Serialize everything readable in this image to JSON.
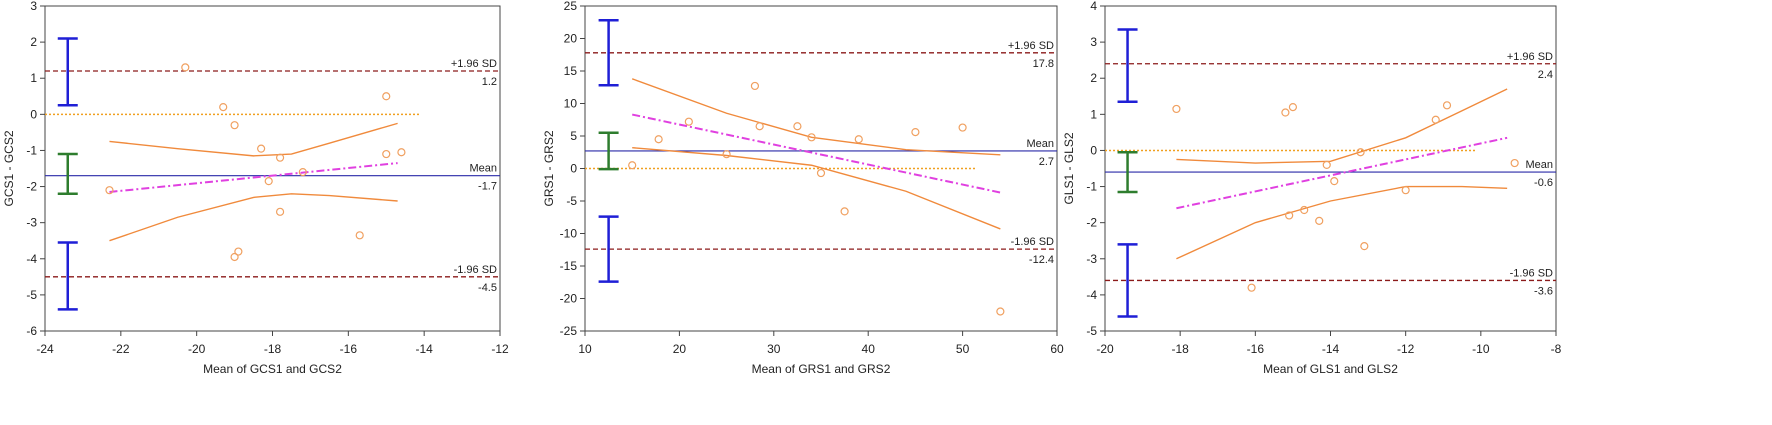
{
  "chart_data": [
    {
      "type": "scatter",
      "subtype": "bland-altman",
      "xlabel": "Mean of GCS1 and GCS2",
      "ylabel": "GCS1 - GCS2",
      "xlim": [
        -24,
        -12
      ],
      "ylim": [
        -6,
        3
      ],
      "xticks": [
        -24,
        -22,
        -20,
        -18,
        -16,
        -14,
        -12
      ],
      "yticks": [
        -6,
        -5,
        -4,
        -3,
        -2,
        -1,
        0,
        1,
        2,
        3
      ],
      "mean": {
        "value": -1.7,
        "label": "Mean",
        "value_label": "-1.7"
      },
      "upper_loa": {
        "value": 1.2,
        "label": "+1.96 SD",
        "value_label": "1.2"
      },
      "lower_loa": {
        "value": -4.5,
        "label": "-1.96 SD",
        "value_label": "-4.5"
      },
      "ci_bars": [
        {
          "x": -23.4,
          "y": [
            0.25,
            2.1
          ],
          "color": "#1f1fd6"
        },
        {
          "x": -23.4,
          "y": [
            -2.2,
            -1.1
          ],
          "color": "#2e7d2e"
        },
        {
          "x": -23.4,
          "y": [
            -5.4,
            -3.55
          ],
          "color": "#1f1fd6"
        }
      ],
      "points": [
        {
          "x": -20.3,
          "y": 1.3
        },
        {
          "x": -19.3,
          "y": 0.2
        },
        {
          "x": -19.0,
          "y": -0.3
        },
        {
          "x": -18.3,
          "y": -0.95
        },
        {
          "x": -17.8,
          "y": -1.2
        },
        {
          "x": -18.1,
          "y": -1.85
        },
        {
          "x": -17.2,
          "y": -1.6
        },
        {
          "x": -17.8,
          "y": -2.7
        },
        {
          "x": -18.9,
          "y": -3.8
        },
        {
          "x": -19.0,
          "y": -3.95
        },
        {
          "x": -15.7,
          "y": -3.35
        },
        {
          "x": -15.0,
          "y": 0.5
        },
        {
          "x": -15.0,
          "y": -1.1
        },
        {
          "x": -14.6,
          "y": -1.05
        },
        {
          "x": -22.3,
          "y": -2.1
        }
      ],
      "regression_line": {
        "x": [
          -22.3,
          -14.7
        ],
        "y": [
          -2.15,
          -1.35
        ]
      },
      "ci_upper": {
        "x": [
          -22.3,
          -20.5,
          -18.5,
          -17.5,
          -16.5,
          -14.7
        ],
        "y": [
          -0.75,
          -0.95,
          -1.15,
          -1.1,
          -0.8,
          -0.25
        ]
      },
      "ci_lower": {
        "x": [
          -22.3,
          -20.5,
          -18.5,
          -17.5,
          -16.5,
          -14.7
        ],
        "y": [
          -3.5,
          -2.85,
          -2.3,
          -2.2,
          -2.25,
          -2.4
        ]
      },
      "zero_line": 0,
      "colors": {
        "points": "#f0a060",
        "ci": "#f08a3c",
        "regression": "#e040e0",
        "mean": "#2a2aa8",
        "loa": "#8b1a1a",
        "zero": "#f0a020"
      }
    },
    {
      "type": "scatter",
      "subtype": "bland-altman",
      "xlabel": "Mean of GRS1 and GRS2",
      "ylabel": "GRS1 - GRS2",
      "xlim": [
        10,
        60
      ],
      "ylim": [
        -25,
        25
      ],
      "xticks": [
        10,
        20,
        30,
        40,
        50,
        60
      ],
      "yticks": [
        -25,
        -20,
        -15,
        -10,
        -5,
        0,
        5,
        10,
        15,
        20,
        25
      ],
      "mean": {
        "value": 2.7,
        "label": "Mean",
        "value_label": "2.7"
      },
      "upper_loa": {
        "value": 17.8,
        "label": "+1.96 SD",
        "value_label": "17.8"
      },
      "lower_loa": {
        "value": -12.4,
        "label": "-1.96 SD",
        "value_label": "-12.4"
      },
      "ci_bars": [
        {
          "x": 12.5,
          "y": [
            12.8,
            22.8
          ],
          "color": "#1f1fd6"
        },
        {
          "x": 12.5,
          "y": [
            -0.1,
            5.5
          ],
          "color": "#2e7d2e"
        },
        {
          "x": 12.5,
          "y": [
            -17.4,
            -7.4
          ],
          "color": "#1f1fd6"
        }
      ],
      "points": [
        {
          "x": 15,
          "y": 0.5
        },
        {
          "x": 17.8,
          "y": 4.5
        },
        {
          "x": 21,
          "y": 7.2
        },
        {
          "x": 25,
          "y": 2.2
        },
        {
          "x": 28,
          "y": 12.7
        },
        {
          "x": 28.5,
          "y": 6.5
        },
        {
          "x": 32.5,
          "y": 6.5
        },
        {
          "x": 34,
          "y": 4.8
        },
        {
          "x": 35,
          "y": -0.7
        },
        {
          "x": 37.5,
          "y": -6.6
        },
        {
          "x": 39,
          "y": 4.5
        },
        {
          "x": 45,
          "y": 5.6
        },
        {
          "x": 50,
          "y": 6.3
        },
        {
          "x": 54,
          "y": -22
        }
      ],
      "regression_line": {
        "x": [
          15,
          54
        ],
        "y": [
          8.3,
          -3.7
        ]
      },
      "ci_upper": {
        "x": [
          15,
          25,
          34,
          44,
          54
        ],
        "y": [
          13.8,
          8.5,
          4.8,
          2.9,
          2.1
        ]
      },
      "ci_lower": {
        "x": [
          15,
          25,
          34,
          44,
          54
        ],
        "y": [
          3.2,
          2.0,
          0.5,
          -3.5,
          -9.3
        ]
      },
      "zero_line": 0,
      "colors": {
        "points": "#f0a060",
        "ci": "#f08a3c",
        "regression": "#e040e0",
        "mean": "#2a2aa8",
        "loa": "#8b1a1a",
        "zero": "#f0a020"
      }
    },
    {
      "type": "scatter",
      "subtype": "bland-altman",
      "xlabel": "Mean of GLS1 and GLS2",
      "ylabel": "GLS1 - GLS2",
      "xlim": [
        -20,
        -8
      ],
      "ylim": [
        -5,
        4
      ],
      "xticks": [
        -20,
        -18,
        -16,
        -14,
        -12,
        -10,
        -8
      ],
      "yticks": [
        -5,
        -4,
        -3,
        -2,
        -1,
        0,
        1,
        2,
        3,
        4
      ],
      "mean": {
        "value": -0.6,
        "label": "Mean",
        "value_label": "-0.6"
      },
      "upper_loa": {
        "value": 2.4,
        "label": "+1.96 SD",
        "value_label": "2.4"
      },
      "lower_loa": {
        "value": -3.6,
        "label": "-1.96 SD",
        "value_label": "-3.6"
      },
      "ci_bars": [
        {
          "x": -19.4,
          "y": [
            1.35,
            3.35
          ],
          "color": "#1f1fd6"
        },
        {
          "x": -19.4,
          "y": [
            -1.15,
            -0.05
          ],
          "color": "#2e7d2e"
        },
        {
          "x": -19.4,
          "y": [
            -4.6,
            -2.6
          ],
          "color": "#1f1fd6"
        }
      ],
      "points": [
        {
          "x": -18.1,
          "y": 1.15
        },
        {
          "x": -15.2,
          "y": 1.05
        },
        {
          "x": -15.0,
          "y": 1.2
        },
        {
          "x": -15.1,
          "y": -1.8
        },
        {
          "x": -14.7,
          "y": -1.65
        },
        {
          "x": -14.3,
          "y": -1.95
        },
        {
          "x": -14.1,
          "y": -0.4
        },
        {
          "x": -13.9,
          "y": -0.85
        },
        {
          "x": -13.2,
          "y": -0.05
        },
        {
          "x": -13.1,
          "y": -2.65
        },
        {
          "x": -12.0,
          "y": -1.1
        },
        {
          "x": -11.2,
          "y": 0.85
        },
        {
          "x": -10.9,
          "y": 1.25
        },
        {
          "x": -16.1,
          "y": -3.8
        },
        {
          "x": -9.1,
          "y": -0.35
        }
      ],
      "regression_line": {
        "x": [
          -18.1,
          -9.3
        ],
        "y": [
          -1.6,
          0.35
        ]
      },
      "ci_upper": {
        "x": [
          -18.1,
          -16,
          -14,
          -12,
          -10.5,
          -9.3
        ],
        "y": [
          -0.25,
          -0.35,
          -0.3,
          0.35,
          1.1,
          1.7
        ]
      },
      "ci_lower": {
        "x": [
          -18.1,
          -16,
          -14,
          -12,
          -10.5,
          -9.3
        ],
        "y": [
          -3.0,
          -2.0,
          -1.4,
          -1.0,
          -1.0,
          -1.05
        ]
      },
      "zero_line": 0,
      "colors": {
        "points": "#f0a060",
        "ci": "#f08a3c",
        "regression": "#e040e0",
        "mean": "#2a2aa8",
        "loa": "#8b1a1a",
        "zero": "#f0a020"
      }
    }
  ]
}
